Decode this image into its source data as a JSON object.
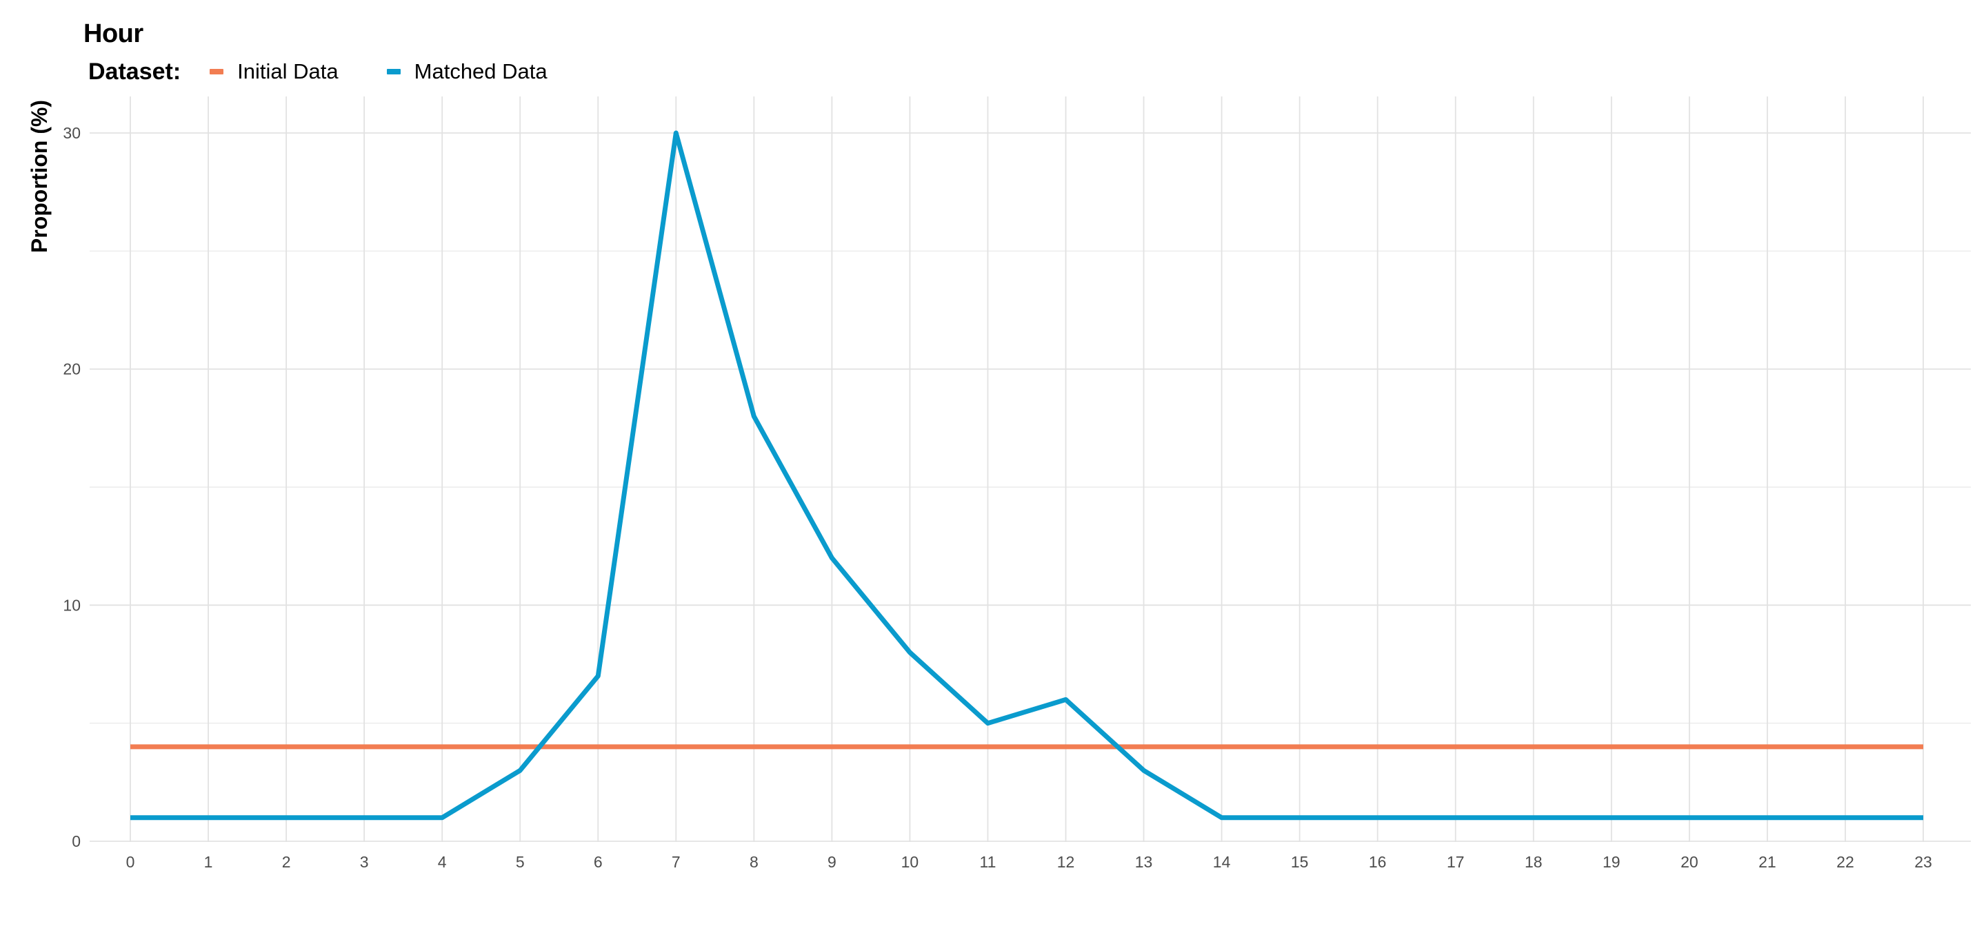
{
  "chart_data": {
    "type": "line",
    "title": "Hour",
    "xlabel": "",
    "ylabel": "Proportion (%)",
    "x": [
      0,
      1,
      2,
      3,
      4,
      5,
      6,
      7,
      8,
      9,
      10,
      11,
      12,
      13,
      14,
      15,
      16,
      17,
      18,
      19,
      20,
      21,
      22,
      23
    ],
    "ylim": [
      0,
      31.5
    ],
    "yticks": [
      0,
      10,
      20,
      30
    ],
    "grid": true,
    "legend": {
      "title": "Dataset:",
      "placement": "top-left"
    },
    "series": [
      {
        "name": "Initial Data",
        "color": "#F27D52",
        "values": [
          4,
          4,
          4,
          4,
          4,
          4,
          4,
          4,
          4,
          4,
          4,
          4,
          4,
          4,
          4,
          4,
          4,
          4,
          4,
          4,
          4,
          4,
          4,
          4
        ]
      },
      {
        "name": "Matched Data",
        "color": "#0A9BCD",
        "values": [
          1,
          1,
          1,
          1,
          1,
          3,
          7,
          30,
          18,
          12,
          8,
          5,
          6,
          3,
          1,
          1,
          1,
          1,
          1,
          1,
          1,
          1,
          1,
          1
        ]
      }
    ]
  }
}
